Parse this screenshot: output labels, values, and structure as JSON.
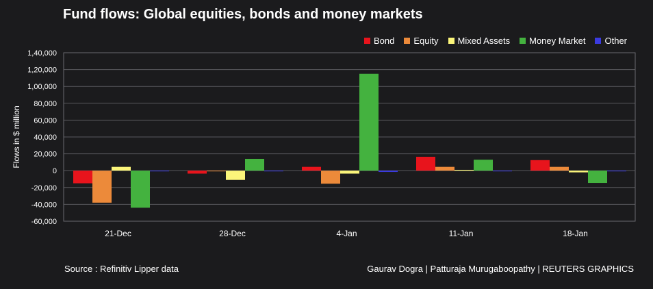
{
  "chart_data": {
    "type": "bar",
    "title": "Fund flows: Global equities, bonds and money markets",
    "xlabel": "",
    "ylabel": "Flows in $ million",
    "ylim": [
      -60000,
      140000
    ],
    "yticks": [
      140000,
      120000,
      100000,
      80000,
      60000,
      40000,
      20000,
      0,
      -20000,
      -40000,
      -60000
    ],
    "ytick_labels": [
      "1,40,000",
      "1,20,000",
      "1,00,000",
      "80,000",
      "60,000",
      "40,000",
      "20,000",
      "0",
      "-20,000",
      "-40,000",
      "-60,000"
    ],
    "categories": [
      "21-Dec",
      "28-Dec",
      "4-Jan",
      "11-Jan",
      "18-Jan"
    ],
    "series": [
      {
        "name": "Bond",
        "color": "#e8141c",
        "values": [
          -15000,
          -3500,
          4500,
          16500,
          12500
        ]
      },
      {
        "name": "Equity",
        "color": "#ec8a3a",
        "values": [
          -38000,
          -500,
          -15500,
          4500,
          4500
        ]
      },
      {
        "name": "Mixed Assets",
        "color": "#fbf57a",
        "values": [
          4500,
          -11000,
          -3500,
          1000,
          -2000
        ]
      },
      {
        "name": "Money Market",
        "color": "#44b23f",
        "values": [
          -44000,
          14000,
          115000,
          13000,
          -14500
        ]
      },
      {
        "name": "Other",
        "color": "#3b3be0",
        "values": [
          -500,
          -500,
          -1500,
          -500,
          -500
        ]
      }
    ],
    "legend_position": "top-right",
    "grid": true
  },
  "footer": {
    "source": "Source : Refinitiv Lipper data",
    "credit": "Gaurav Dogra | Patturaja Murugaboopathy | REUTERS GRAPHICS"
  }
}
